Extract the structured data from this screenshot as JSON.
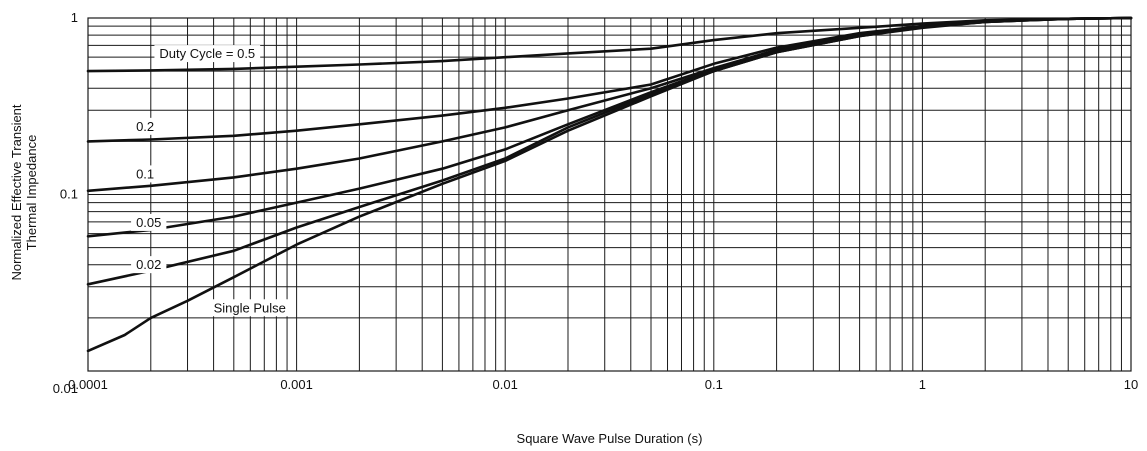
{
  "chart_data": {
    "type": "line",
    "title": "",
    "xlabel": "Square Wave Pulse Duration (s)",
    "ylabel_lines": [
      "Normalized Effective Transient",
      "Thermal Impedance"
    ],
    "x_scale": "log",
    "y_scale": "log",
    "xlim": [
      0.0001,
      10
    ],
    "ylim": [
      0.01,
      1
    ],
    "grid": true,
    "x_ticks": [
      {
        "value": 0.0001,
        "label": "0.0001"
      },
      {
        "value": 0.001,
        "label": "0.001"
      },
      {
        "value": 0.01,
        "label": "0.01"
      },
      {
        "value": 0.1,
        "label": "0.1"
      },
      {
        "value": 1,
        "label": "1"
      },
      {
        "value": 10,
        "label": "10"
      }
    ],
    "y_ticks": [
      {
        "value": 0.01,
        "label": "0.01"
      },
      {
        "value": 0.1,
        "label": "0.1"
      },
      {
        "value": 1,
        "label": "1"
      }
    ],
    "series": [
      {
        "name": "Duty Cycle = 0.5",
        "x": [
          0.0001,
          0.0002,
          0.0005,
          0.001,
          0.002,
          0.005,
          0.01,
          0.02,
          0.05,
          0.1,
          0.2,
          0.5,
          1,
          2,
          5,
          10
        ],
        "y": [
          0.5,
          0.505,
          0.515,
          0.53,
          0.545,
          0.57,
          0.6,
          0.63,
          0.67,
          0.75,
          0.82,
          0.88,
          0.93,
          0.97,
          0.99,
          1.0
        ]
      },
      {
        "name": "0.2",
        "x": [
          0.0001,
          0.0002,
          0.0005,
          0.001,
          0.002,
          0.005,
          0.01,
          0.02,
          0.05,
          0.1,
          0.2,
          0.5,
          1,
          2,
          5,
          10
        ],
        "y": [
          0.2,
          0.205,
          0.215,
          0.23,
          0.25,
          0.28,
          0.31,
          0.35,
          0.42,
          0.55,
          0.68,
          0.82,
          0.9,
          0.96,
          0.99,
          1.0
        ]
      },
      {
        "name": "0.1",
        "x": [
          0.0001,
          0.0002,
          0.0005,
          0.001,
          0.002,
          0.005,
          0.01,
          0.02,
          0.05,
          0.1,
          0.2,
          0.5,
          1,
          2,
          5,
          10
        ],
        "y": [
          0.105,
          0.112,
          0.125,
          0.14,
          0.16,
          0.2,
          0.24,
          0.3,
          0.4,
          0.52,
          0.66,
          0.81,
          0.9,
          0.96,
          0.99,
          1.0
        ]
      },
      {
        "name": "0.05",
        "x": [
          0.0001,
          0.0002,
          0.0005,
          0.001,
          0.002,
          0.005,
          0.01,
          0.02,
          0.05,
          0.1,
          0.2,
          0.5,
          1,
          2,
          5,
          10
        ],
        "y": [
          0.058,
          0.063,
          0.075,
          0.09,
          0.108,
          0.14,
          0.18,
          0.25,
          0.38,
          0.51,
          0.65,
          0.8,
          0.89,
          0.95,
          0.99,
          1.0
        ]
      },
      {
        "name": "0.02",
        "x": [
          0.0001,
          0.0002,
          0.0005,
          0.001,
          0.002,
          0.005,
          0.01,
          0.02,
          0.05,
          0.1,
          0.2,
          0.5,
          1,
          2,
          5,
          10
        ],
        "y": [
          0.031,
          0.037,
          0.048,
          0.065,
          0.085,
          0.12,
          0.16,
          0.24,
          0.37,
          0.5,
          0.64,
          0.79,
          0.89,
          0.95,
          0.99,
          1.0
        ]
      },
      {
        "name": "Single Pulse",
        "x": [
          0.0001,
          0.00015,
          0.0002,
          0.0003,
          0.0005,
          0.001,
          0.002,
          0.005,
          0.01,
          0.02,
          0.05,
          0.1,
          0.2,
          0.5,
          1,
          2,
          5,
          10
        ],
        "y": [
          0.013,
          0.016,
          0.02,
          0.025,
          0.034,
          0.052,
          0.075,
          0.115,
          0.155,
          0.23,
          0.36,
          0.5,
          0.64,
          0.79,
          0.88,
          0.95,
          0.99,
          1.0
        ]
      }
    ],
    "curve_labels": [
      {
        "series": "Duty Cycle = 0.5",
        "x": 0.00022,
        "y": 0.62
      },
      {
        "series": "0.2",
        "x": 0.00017,
        "y": 0.24
      },
      {
        "series": "0.1",
        "x": 0.00017,
        "y": 0.129
      },
      {
        "series": "0.05",
        "x": 0.00017,
        "y": 0.0685
      },
      {
        "series": "0.02",
        "x": 0.00017,
        "y": 0.0395
      },
      {
        "series": "Single Pulse",
        "x": 0.0004,
        "y": 0.0225
      }
    ]
  }
}
